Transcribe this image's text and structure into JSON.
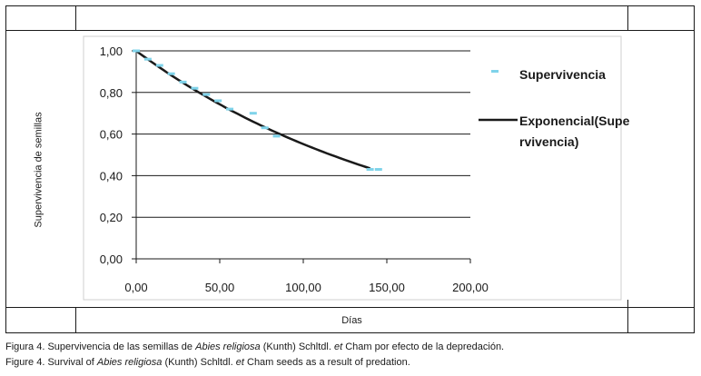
{
  "chart_data": {
    "type": "scatter",
    "ylabel": "Supervivencia de semillas",
    "xlabel": "Días",
    "xlim": [
      0,
      200
    ],
    "ylim": [
      0,
      1
    ],
    "x_ticks": [
      "0,00",
      "50,00",
      "100,00",
      "150,00",
      "200,00"
    ],
    "y_ticks": [
      "0,00",
      "0,20",
      "0,40",
      "0,60",
      "0,80",
      "1,00"
    ],
    "grid": "horizontal",
    "legend_position": "right",
    "series": [
      {
        "name": "Supervivencia",
        "style": "marker",
        "color": "#7fd3ea",
        "points": [
          {
            "x": 0,
            "y": 1.0
          },
          {
            "x": 7,
            "y": 0.96
          },
          {
            "x": 14,
            "y": 0.93
          },
          {
            "x": 21,
            "y": 0.89
          },
          {
            "x": 28,
            "y": 0.85
          },
          {
            "x": 35,
            "y": 0.82
          },
          {
            "x": 42,
            "y": 0.79
          },
          {
            "x": 49,
            "y": 0.76
          },
          {
            "x": 56,
            "y": 0.72
          },
          {
            "x": 70,
            "y": 0.7
          },
          {
            "x": 77,
            "y": 0.63
          },
          {
            "x": 84,
            "y": 0.59
          },
          {
            "x": 140,
            "y": 0.43
          },
          {
            "x": 145,
            "y": 0.43
          }
        ]
      },
      {
        "name": "Exponencial(Supervivencia)",
        "legend_lines": [
          "Exponencial(Supe",
          "rvivencia)"
        ],
        "style": "line",
        "color": "#1a1a1a",
        "x_start": 0,
        "x_end": 140,
        "y_start": 1.0,
        "y_end": 0.435
      }
    ]
  },
  "captions": {
    "es": {
      "prefix": "Figura 4. Supervivencia de las semillas de ",
      "species": "Abies religiosa",
      "middle": " (Kunth) Schltdl. ",
      "et": "et",
      "suffix": " Cham por efecto de la depredación."
    },
    "en": {
      "prefix": "Figure 4. Survival of ",
      "species": "Abies religiosa",
      "middle": " (Kunth) Schltdl. ",
      "et": "et",
      "suffix": " Cham seeds as a result of predation."
    }
  }
}
